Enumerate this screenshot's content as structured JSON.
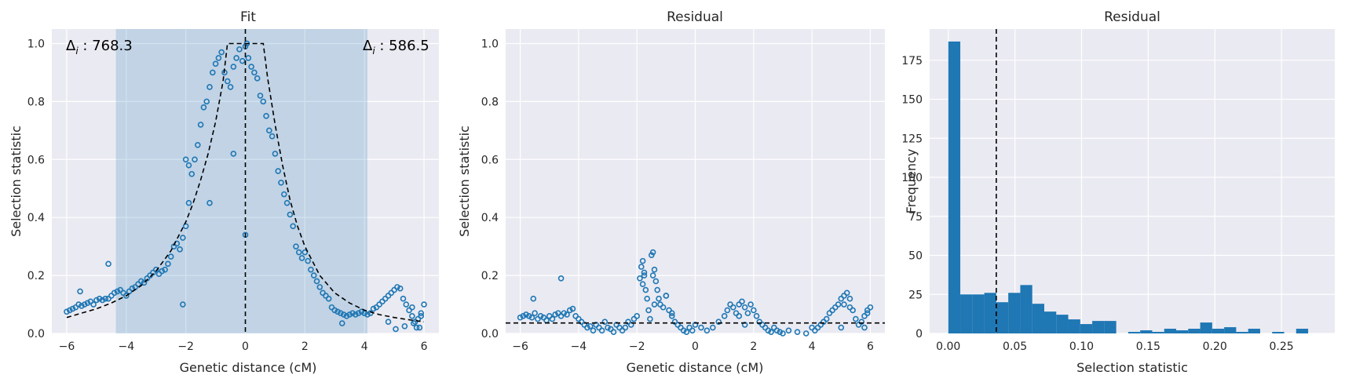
{
  "colors": {
    "panel_background": "#eaeaf2",
    "grid": "#ffffff",
    "points": "#1f77b4",
    "span": "#1f77b4",
    "reference_line": "#000000"
  },
  "chart_data": [
    {
      "type": "scatter",
      "title": "Fit",
      "xlabel": "Genetic distance (cM)",
      "ylabel": "Selection statistic",
      "xlim": [
        -6.5,
        6.5
      ],
      "ylim": [
        0,
        1.05
      ],
      "xticks": [
        -6,
        -4,
        -2,
        0,
        2,
        4,
        6
      ],
      "yticks": [
        0.0,
        0.2,
        0.4,
        0.6,
        0.8,
        1.0
      ],
      "xtick_labels": [
        "−6",
        "−4",
        "−2",
        "0",
        "2",
        "4",
        "6"
      ],
      "ytick_labels": [
        "0.0",
        "0.2",
        "0.4",
        "0.6",
        "0.8",
        "1.0"
      ],
      "grid": true,
      "shaded_span": [
        -4.35,
        4.1
      ],
      "vline_x": 0,
      "annotations": {
        "left_sym": "Δ",
        "left_sub": "i",
        "left_value": " : 768.3",
        "right_sym": "Δ",
        "right_sub": "i",
        "right_value": " : 586.5"
      },
      "fit_curve": {
        "peak_value": 1.0,
        "plateau_half_width": 0.6,
        "x": [
          -6,
          -5.5,
          -5,
          -4.5,
          -4,
          -3.5,
          -3,
          -2.5,
          -2,
          -1.75,
          -1.5,
          -1.25,
          -1,
          -0.75,
          -0.6,
          -0.4,
          0.6,
          0.75,
          1,
          1.25,
          1.5,
          1.75,
          2,
          2.5,
          3,
          3.5,
          4,
          4.5,
          5,
          5.5,
          6
        ],
        "y": [
          0.055,
          0.07,
          0.085,
          0.105,
          0.13,
          0.165,
          0.215,
          0.285,
          0.385,
          0.45,
          0.53,
          0.62,
          0.73,
          0.87,
          1.0,
          1.0,
          1.0,
          0.88,
          0.72,
          0.58,
          0.46,
          0.37,
          0.3,
          0.2,
          0.14,
          0.105,
          0.08,
          0.065,
          0.055,
          0.047,
          0.04
        ]
      },
      "points": {
        "x": [
          -6.0,
          -5.9,
          -5.8,
          -5.7,
          -5.6,
          -5.5,
          -5.4,
          -5.3,
          -5.2,
          -5.1,
          -5.0,
          -4.9,
          -4.8,
          -4.7,
          -4.6,
          -4.5,
          -4.4,
          -4.3,
          -4.2,
          -4.1,
          -4.0,
          -3.9,
          -3.8,
          -3.7,
          -3.6,
          -3.5,
          -3.4,
          -3.3,
          -3.2,
          -3.1,
          -3.0,
          -2.9,
          -2.8,
          -2.7,
          -2.6,
          -2.5,
          -2.4,
          -2.3,
          -2.2,
          -2.1,
          -2.0,
          -1.9,
          -1.8,
          -1.7,
          -1.6,
          -1.5,
          -1.4,
          -1.3,
          -1.2,
          -1.1,
          -1.0,
          -0.9,
          -0.8,
          -0.7,
          -0.6,
          -0.5,
          -0.4,
          -0.3,
          -0.2,
          -0.1,
          0.0,
          0.1,
          0.2,
          0.3,
          0.4,
          0.5,
          0.6,
          0.7,
          0.8,
          0.9,
          1.0,
          1.1,
          1.2,
          1.3,
          1.4,
          1.5,
          1.6,
          1.7,
          1.8,
          1.9,
          2.0,
          2.1,
          2.2,
          2.3,
          2.4,
          2.5,
          2.6,
          2.7,
          2.8,
          2.9,
          3.0,
          3.1,
          3.2,
          3.3,
          3.4,
          3.5,
          3.6,
          3.7,
          3.8,
          3.9,
          4.0,
          4.1,
          4.2,
          4.3,
          4.4,
          4.5,
          4.6,
          4.7,
          4.8,
          4.9,
          5.0,
          5.1,
          5.2,
          5.3,
          5.4,
          5.5,
          5.6,
          5.7,
          5.8,
          5.9,
          6.0,
          -5.55,
          -4.6,
          -2.1,
          -1.2,
          -0.4,
          0.0,
          0.05,
          3.25,
          4.0,
          4.8,
          5.05,
          5.35,
          5.75,
          5.85,
          5.6,
          5.65,
          5.9,
          -2.0,
          -1.9
        ],
        "y": [
          0.075,
          0.08,
          0.085,
          0.09,
          0.1,
          0.095,
          0.1,
          0.105,
          0.11,
          0.1,
          0.115,
          0.12,
          0.115,
          0.12,
          0.12,
          0.13,
          0.14,
          0.145,
          0.15,
          0.14,
          0.13,
          0.145,
          0.155,
          0.16,
          0.17,
          0.18,
          0.175,
          0.19,
          0.2,
          0.21,
          0.22,
          0.205,
          0.215,
          0.22,
          0.24,
          0.265,
          0.3,
          0.31,
          0.29,
          0.33,
          0.37,
          0.45,
          0.55,
          0.6,
          0.65,
          0.72,
          0.78,
          0.8,
          0.85,
          0.9,
          0.93,
          0.95,
          0.97,
          0.9,
          0.87,
          0.85,
          0.92,
          0.95,
          0.98,
          0.94,
          0.99,
          0.95,
          0.92,
          0.9,
          0.88,
          0.82,
          0.8,
          0.75,
          0.7,
          0.68,
          0.62,
          0.56,
          0.52,
          0.48,
          0.45,
          0.41,
          0.37,
          0.3,
          0.28,
          0.26,
          0.28,
          0.25,
          0.22,
          0.2,
          0.18,
          0.16,
          0.14,
          0.13,
          0.12,
          0.09,
          0.08,
          0.075,
          0.07,
          0.065,
          0.06,
          0.065,
          0.07,
          0.065,
          0.07,
          0.075,
          0.07,
          0.065,
          0.07,
          0.085,
          0.09,
          0.1,
          0.11,
          0.12,
          0.13,
          0.14,
          0.15,
          0.16,
          0.155,
          0.12,
          0.1,
          0.08,
          0.06,
          0.04,
          0.05,
          0.07,
          0.1,
          0.145,
          0.24,
          0.1,
          0.45,
          0.62,
          0.34,
          1.0,
          0.035,
          0.07,
          0.04,
          0.015,
          0.025,
          0.02,
          0.02,
          0.09,
          0.035,
          0.06,
          0.6,
          0.58
        ]
      }
    },
    {
      "type": "scatter",
      "title": "Residual",
      "xlabel": "Genetic distance (cM)",
      "ylabel": "Selection statistic",
      "xlim": [
        -6.5,
        6.5
      ],
      "ylim": [
        0,
        1.05
      ],
      "xticks": [
        -6,
        -4,
        -2,
        0,
        2,
        4,
        6
      ],
      "yticks": [
        0.0,
        0.2,
        0.4,
        0.6,
        0.8,
        1.0
      ],
      "xtick_labels": [
        "−6",
        "−4",
        "−2",
        "0",
        "2",
        "4",
        "6"
      ],
      "ytick_labels": [
        "0.0",
        "0.2",
        "0.4",
        "0.6",
        "0.8",
        "1.0"
      ],
      "grid": true,
      "hline_y": 0.036,
      "points": {
        "x": [
          -6.0,
          -5.9,
          -5.8,
          -5.7,
          -5.6,
          -5.5,
          -5.4,
          -5.3,
          -5.2,
          -5.1,
          -5.0,
          -4.9,
          -4.8,
          -4.7,
          -4.6,
          -4.5,
          -4.4,
          -4.3,
          -4.2,
          -4.1,
          -4.0,
          -3.9,
          -3.8,
          -3.7,
          -3.6,
          -3.5,
          -3.4,
          -3.3,
          -3.2,
          -3.1,
          -3.0,
          -2.9,
          -2.8,
          -2.7,
          -2.6,
          -2.5,
          -2.4,
          -2.3,
          -2.2,
          -2.1,
          -2.0,
          -1.9,
          -1.85,
          -1.8,
          -1.75,
          -1.7,
          -1.65,
          -1.6,
          -1.55,
          -1.5,
          -1.45,
          -1.4,
          -1.35,
          -1.3,
          -1.25,
          -1.2,
          -1.1,
          -1.0,
          -0.9,
          -0.8,
          -0.7,
          -0.6,
          -0.5,
          -0.4,
          -0.3,
          -0.2,
          -0.1,
          0.0,
          0.2,
          0.4,
          0.6,
          0.8,
          1.0,
          1.1,
          1.2,
          1.3,
          1.4,
          1.5,
          1.6,
          1.7,
          1.8,
          1.9,
          2.0,
          2.1,
          2.2,
          2.3,
          2.4,
          2.5,
          2.6,
          2.7,
          2.8,
          2.9,
          3.0,
          3.2,
          3.5,
          3.8,
          4.0,
          4.1,
          4.2,
          4.3,
          4.4,
          4.5,
          4.6,
          4.7,
          4.8,
          4.9,
          5.0,
          5.1,
          5.2,
          5.3,
          5.4,
          5.5,
          5.6,
          5.7,
          5.8,
          5.9,
          6.0,
          -5.55,
          -4.6,
          -1.8,
          -1.75,
          -1.45,
          -1.4,
          -1.0,
          -0.8,
          1.5,
          1.7,
          5.0,
          5.1,
          5.3,
          5.8,
          5.9
        ],
        "y": [
          0.055,
          0.06,
          0.065,
          0.06,
          0.055,
          0.07,
          0.05,
          0.06,
          0.055,
          0.045,
          0.06,
          0.05,
          0.065,
          0.07,
          0.06,
          0.07,
          0.065,
          0.08,
          0.085,
          0.06,
          0.05,
          0.04,
          0.03,
          0.02,
          0.025,
          0.01,
          0.03,
          0.02,
          0.01,
          0.04,
          0.02,
          0.015,
          0.005,
          0.03,
          0.02,
          0.01,
          0.02,
          0.04,
          0.03,
          0.05,
          0.06,
          0.19,
          0.23,
          0.25,
          0.2,
          0.15,
          0.12,
          0.08,
          0.05,
          0.27,
          0.28,
          0.22,
          0.18,
          0.15,
          0.12,
          0.1,
          0.09,
          0.13,
          0.08,
          0.06,
          0.04,
          0.03,
          0.02,
          0.01,
          0.005,
          0.02,
          0.01,
          0.03,
          0.02,
          0.01,
          0.02,
          0.04,
          0.06,
          0.08,
          0.1,
          0.09,
          0.07,
          0.1,
          0.11,
          0.09,
          0.07,
          0.1,
          0.08,
          0.06,
          0.04,
          0.03,
          0.02,
          0.01,
          0.005,
          0.02,
          0.01,
          0.005,
          0.0,
          0.01,
          0.005,
          0.0,
          0.02,
          0.01,
          0.02,
          0.03,
          0.04,
          0.05,
          0.07,
          0.08,
          0.09,
          0.1,
          0.12,
          0.13,
          0.14,
          0.12,
          0.08,
          0.05,
          0.03,
          0.04,
          0.06,
          0.08,
          0.09,
          0.12,
          0.19,
          0.17,
          0.21,
          0.2,
          0.1,
          0.13,
          0.07,
          0.06,
          0.03,
          0.02,
          0.1,
          0.09,
          0.02,
          0.07
        ],
        "y_note": "values read off the residual panel"
      }
    },
    {
      "type": "bar",
      "title": "Residual",
      "xlabel": "Selection statistic",
      "ylabel": "Frequency",
      "xlim": [
        -0.014,
        0.29
      ],
      "ylim": [
        0,
        195
      ],
      "xticks": [
        0.0,
        0.05,
        0.1,
        0.15,
        0.2,
        0.25
      ],
      "yticks": [
        0,
        25,
        50,
        75,
        100,
        125,
        150,
        175
      ],
      "xtick_labels": [
        "0.00",
        "0.05",
        "0.10",
        "0.15",
        "0.20",
        "0.25"
      ],
      "ytick_labels": [
        "0",
        "25",
        "50",
        "75",
        "100",
        "125",
        "150",
        "175"
      ],
      "grid": true,
      "vline_x": 0.036,
      "bin_start": 0.0,
      "bin_width": 0.009,
      "values": [
        187,
        25,
        25,
        26,
        20,
        26,
        31,
        19,
        14,
        12,
        9,
        6,
        8,
        8,
        0,
        1,
        2,
        1,
        3,
        2,
        3,
        7,
        3,
        4,
        1,
        3,
        0,
        1,
        0,
        3
      ]
    }
  ]
}
